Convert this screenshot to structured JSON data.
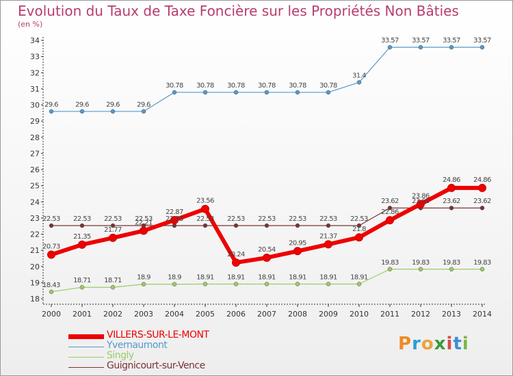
{
  "chart_data": {
    "type": "line",
    "title": "Evolution du Taux de Taxe Foncière sur les Propriétés Non Bâties",
    "subtitle": "(en %)",
    "xlabel": "",
    "ylabel": "(en %)",
    "ylim": [
      18,
      34
    ],
    "yticks": [
      18,
      19,
      20,
      21,
      22,
      23,
      24,
      25,
      26,
      27,
      28,
      29,
      30,
      31,
      32,
      33,
      34
    ],
    "categories": [
      "2000",
      "2001",
      "2002",
      "2003",
      "2004",
      "2005",
      "2006",
      "2007",
      "2008",
      "2009",
      "2010",
      "2011",
      "2012",
      "2013",
      "2014"
    ],
    "grid": false,
    "legend_position": "bottom-left",
    "series": [
      {
        "name": "VILLERS-SUR-LE-MONT",
        "color": "#ee0000",
        "values": [
          20.73,
          21.35,
          21.77,
          22.21,
          22.87,
          23.56,
          20.24,
          20.54,
          20.95,
          21.37,
          21.8,
          22.86,
          23.86,
          24.86,
          24.86
        ],
        "labels": [
          "20.73",
          "21.35",
          "21.77",
          "22.21",
          "22.87",
          "23.56",
          "20.24",
          "20.54",
          "20.95",
          "21.37",
          "21.8",
          "22.86",
          "23.86",
          "24.86",
          "24.86"
        ]
      },
      {
        "name": "Yvernaumont",
        "color": "#5599cc",
        "values": [
          29.6,
          29.6,
          29.6,
          29.6,
          30.78,
          30.78,
          30.78,
          30.78,
          30.78,
          30.78,
          31.4,
          33.57,
          33.57,
          33.57,
          33.57
        ],
        "labels": [
          "29.6",
          "29.6",
          "29.6",
          "29.6",
          "30.78",
          "30.78",
          "30.78",
          "30.78",
          "30.78",
          "30.78",
          "31.4",
          "33.57",
          "33.57",
          "33.57",
          "33.57"
        ]
      },
      {
        "name": "Singly",
        "color": "#99cc66",
        "values": [
          18.43,
          18.71,
          18.71,
          18.9,
          18.9,
          18.91,
          18.91,
          18.91,
          18.91,
          18.91,
          18.91,
          19.83,
          19.83,
          19.83,
          19.83
        ],
        "labels": [
          "18.43",
          "18.71",
          "18.71",
          "18.9",
          "18.9",
          "18.91",
          "18.91",
          "18.91",
          "18.91",
          "18.91",
          "18.91",
          "19.83",
          "19.83",
          "19.83",
          "19.83"
        ]
      },
      {
        "name": "Guignicourt-sur-Vence",
        "color": "#7a3333",
        "values": [
          22.53,
          22.53,
          22.53,
          22.53,
          22.53,
          22.53,
          22.53,
          22.53,
          22.53,
          22.53,
          22.53,
          23.62,
          23.62,
          23.62,
          23.62
        ],
        "labels": [
          "22.53",
          "22.53",
          "22.53",
          "22.53",
          "22.53",
          "22.53",
          "22.53",
          "22.53",
          "22.53",
          "22.53",
          "22.53",
          "23.62",
          "23.62",
          "23.62",
          "23.62"
        ]
      }
    ]
  },
  "logo": {
    "text_parts": [
      "P",
      "r",
      "o",
      "x",
      "i",
      "t",
      "i"
    ]
  }
}
